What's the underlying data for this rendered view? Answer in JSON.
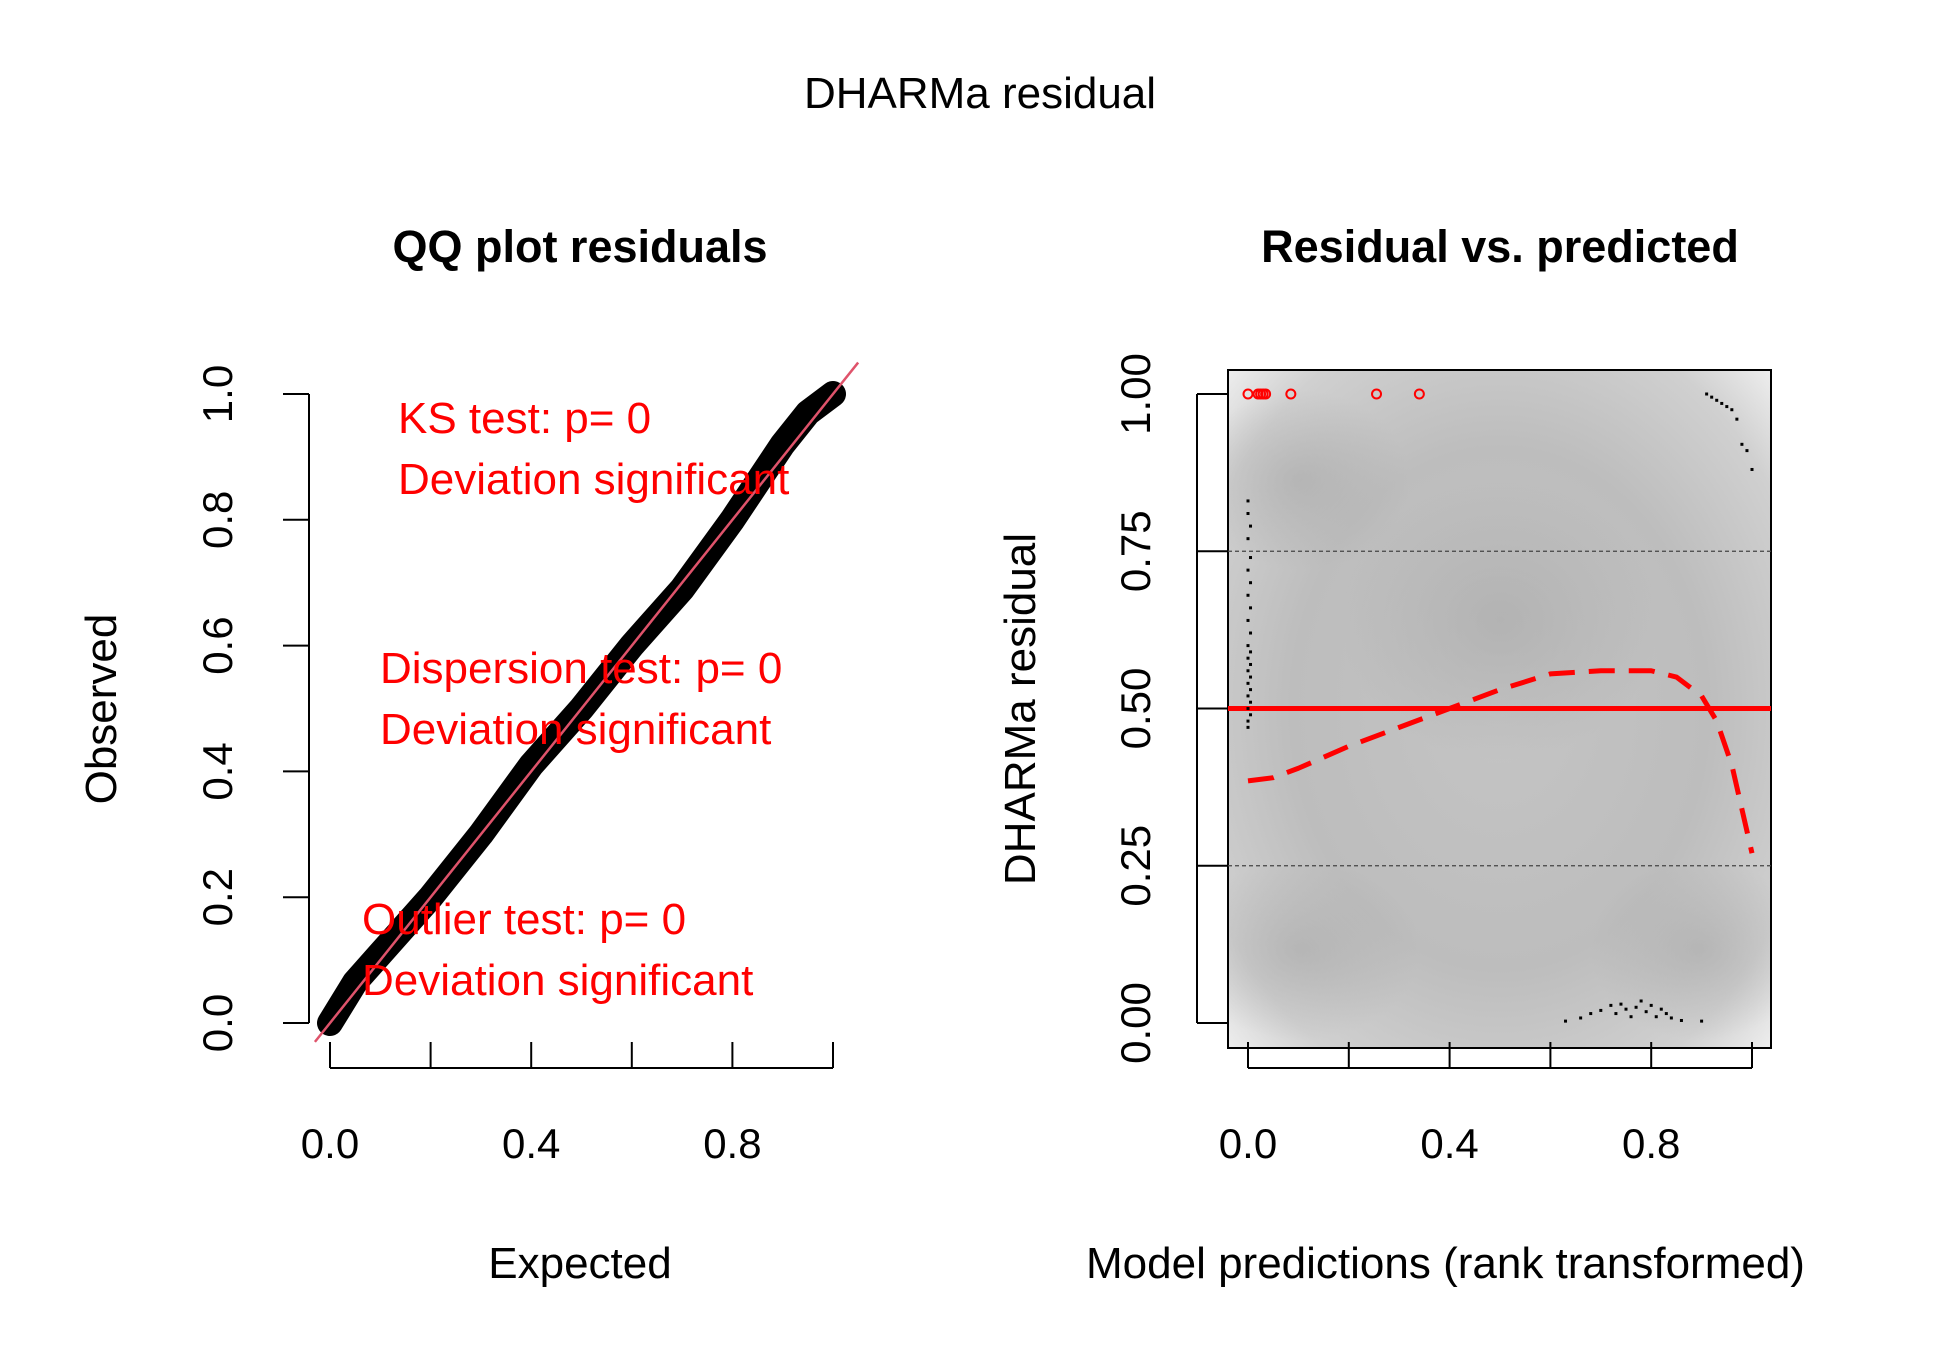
{
  "figure": {
    "title": "DHARMa residual"
  },
  "chart_data": [
    {
      "type": "scatter",
      "title": "QQ plot residuals",
      "xlabel": "Expected",
      "ylabel": "Observed",
      "xlim": [
        0,
        1
      ],
      "ylim": [
        0,
        1
      ],
      "x_ticks": [
        "0.0",
        "0.4",
        "0.8"
      ],
      "x_tick_values": [
        0,
        0.4,
        0.8
      ],
      "x_minor_ticks": [
        0,
        0.2,
        0.4,
        0.6,
        0.8,
        1.0
      ],
      "y_ticks": [
        "0.0",
        "0.2",
        "0.4",
        "0.6",
        "0.8",
        "1.0"
      ],
      "y_tick_values": [
        0,
        0.2,
        0.4,
        0.6,
        0.8,
        1.0
      ],
      "grid": false,
      "series": [
        {
          "values": [
            [
              0.0,
              0.0
            ],
            [
              0.05,
              0.065
            ],
            [
              0.1,
              0.11
            ],
            [
              0.2,
              0.2
            ],
            [
              0.3,
              0.3
            ],
            [
              0.4,
              0.41
            ],
            [
              0.5,
              0.5
            ],
            [
              0.6,
              0.6
            ],
            [
              0.7,
              0.69
            ],
            [
              0.8,
              0.8
            ],
            [
              0.9,
              0.92
            ],
            [
              0.95,
              0.97
            ],
            [
              1.0,
              1.0
            ]
          ],
          "color": "#000000"
        }
      ],
      "reference_line": {
        "from": [
          -0.03,
          -0.03
        ],
        "to": [
          1.05,
          1.05
        ],
        "color": "#df536b"
      },
      "annotations": [
        {
          "line1": "KS test: p= 0",
          "line2": "Deviation  significant",
          "color": "#ff0000"
        },
        {
          "line1": "Dispersion test: p= 0",
          "line2": "Deviation  significant",
          "color": "#ff0000"
        },
        {
          "line1": "Outlier test: p= 0",
          "line2": "Deviation  significant",
          "color": "#ff0000"
        }
      ]
    },
    {
      "type": "scatter",
      "title": "Residual vs. predicted",
      "xlabel": "Model predictions (rank transformed)",
      "ylabel": "DHARMa residual",
      "xlim": [
        0,
        1
      ],
      "ylim": [
        0,
        1
      ],
      "x_ticks": [
        "0.0",
        "0.4",
        "0.8"
      ],
      "x_tick_values": [
        0,
        0.4,
        0.8
      ],
      "x_minor_ticks": [
        0,
        0.2,
        0.4,
        0.6,
        0.8,
        1.0
      ],
      "y_ticks": [
        "0.00",
        "0.25",
        "0.50",
        "0.75",
        "1.00"
      ],
      "y_tick_values": [
        0,
        0.25,
        0.5,
        0.75,
        1.0
      ],
      "grid": false,
      "background": "density shading (grey)",
      "quantile_lines": [
        0.25,
        0.75
      ],
      "median_line": {
        "y": 0.5,
        "color": "#ff0000"
      },
      "smooth_curve": {
        "color": "#ff0000",
        "style": "dashed",
        "values": [
          [
            0.0,
            0.385
          ],
          [
            0.05,
            0.39
          ],
          [
            0.1,
            0.405
          ],
          [
            0.2,
            0.44
          ],
          [
            0.3,
            0.47
          ],
          [
            0.4,
            0.5
          ],
          [
            0.5,
            0.53
          ],
          [
            0.6,
            0.555
          ],
          [
            0.7,
            0.56
          ],
          [
            0.8,
            0.56
          ],
          [
            0.85,
            0.55
          ],
          [
            0.9,
            0.52
          ],
          [
            0.93,
            0.48
          ],
          [
            0.96,
            0.41
          ],
          [
            0.98,
            0.34
          ],
          [
            1.0,
            0.27
          ]
        ]
      },
      "outliers": [
        [
          0.0,
          1.0
        ],
        [
          0.02,
          1.0
        ],
        [
          0.025,
          1.0
        ],
        [
          0.03,
          1.0
        ],
        [
          0.035,
          1.0
        ],
        [
          0.085,
          1.0
        ],
        [
          0.255,
          1.0
        ],
        [
          0.34,
          1.0
        ]
      ],
      "points": [
        [
          0.0,
          0.83
        ],
        [
          0.0,
          0.81
        ],
        [
          0.005,
          0.79
        ],
        [
          0.0,
          0.77
        ],
        [
          0.005,
          0.74
        ],
        [
          0.0,
          0.72
        ],
        [
          0.005,
          0.7
        ],
        [
          0.0,
          0.68
        ],
        [
          0.005,
          0.66
        ],
        [
          0.0,
          0.64
        ],
        [
          0.005,
          0.62
        ],
        [
          0.0,
          0.6
        ],
        [
          0.005,
          0.59
        ],
        [
          0.0,
          0.58
        ],
        [
          0.005,
          0.57
        ],
        [
          0.0,
          0.56
        ],
        [
          0.005,
          0.55
        ],
        [
          0.0,
          0.54
        ],
        [
          0.005,
          0.53
        ],
        [
          0.0,
          0.52
        ],
        [
          0.005,
          0.51
        ],
        [
          0.0,
          0.5
        ],
        [
          0.005,
          0.49
        ],
        [
          0.0,
          0.48
        ],
        [
          0.0,
          0.47
        ],
        [
          0.63,
          0.003
        ],
        [
          0.66,
          0.008
        ],
        [
          0.68,
          0.015
        ],
        [
          0.7,
          0.02
        ],
        [
          0.72,
          0.028
        ],
        [
          0.73,
          0.015
        ],
        [
          0.74,
          0.03
        ],
        [
          0.75,
          0.022
        ],
        [
          0.76,
          0.01
        ],
        [
          0.77,
          0.025
        ],
        [
          0.78,
          0.035
        ],
        [
          0.79,
          0.018
        ],
        [
          0.8,
          0.028
        ],
        [
          0.81,
          0.01
        ],
        [
          0.82,
          0.022
        ],
        [
          0.83,
          0.015
        ],
        [
          0.84,
          0.008
        ],
        [
          0.86,
          0.004
        ],
        [
          0.9,
          0.003
        ],
        [
          0.91,
          1.0
        ],
        [
          0.92,
          0.995
        ],
        [
          0.93,
          0.99
        ],
        [
          0.94,
          0.985
        ],
        [
          0.95,
          0.98
        ],
        [
          0.96,
          0.975
        ],
        [
          0.97,
          0.96
        ],
        [
          0.98,
          0.92
        ],
        [
          0.99,
          0.91
        ],
        [
          1.0,
          0.88
        ]
      ]
    }
  ]
}
